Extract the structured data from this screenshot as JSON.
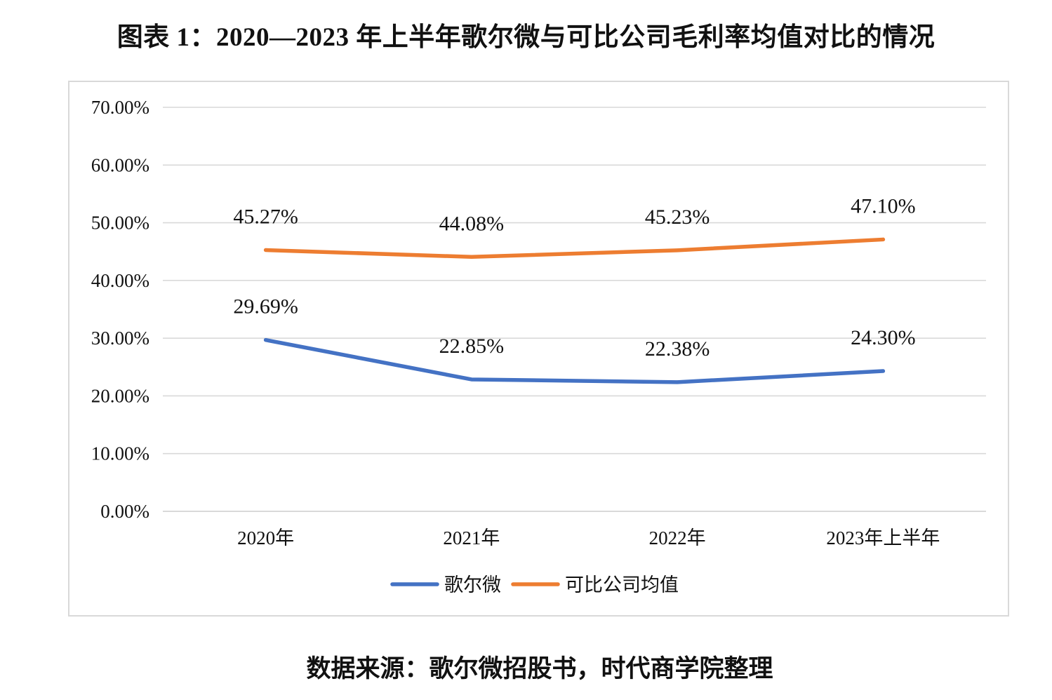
{
  "title": "图表 1：2020—2023 年上半年歌尔微与可比公司毛利率均值对比的情况",
  "source": "数据来源：歌尔微招股书，时代商学院整理",
  "chart_data": {
    "type": "line",
    "categories": [
      "2020年",
      "2021年",
      "2022年",
      "2023年上半年"
    ],
    "series": [
      {
        "name": "歌尔微",
        "color": "#4472C4",
        "values": [
          29.69,
          22.85,
          22.38,
          24.3
        ],
        "labels": [
          "29.69%",
          "22.85%",
          "22.38%",
          "24.30%"
        ]
      },
      {
        "name": "可比公司均值",
        "color": "#ED7D31",
        "values": [
          45.27,
          44.08,
          45.23,
          47.1
        ],
        "labels": [
          "45.27%",
          "44.08%",
          "45.23%",
          "47.10%"
        ]
      }
    ],
    "ylim": [
      0,
      70
    ],
    "yticks": [
      0,
      10,
      20,
      30,
      40,
      50,
      60,
      70
    ],
    "ytick_labels": [
      "0.00%",
      "10.00%",
      "20.00%",
      "30.00%",
      "40.00%",
      "50.00%",
      "60.00%",
      "70.00%"
    ],
    "gridline_color": "#D9D9D9",
    "grid": true,
    "legend": "bottom"
  }
}
